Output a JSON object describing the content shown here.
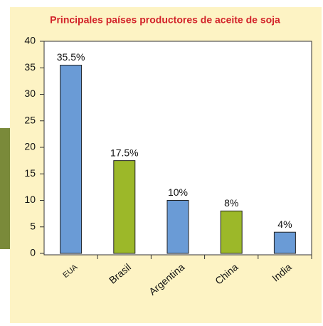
{
  "chart_data": {
    "type": "bar",
    "title": "Principales países productores de aceite de soja",
    "categories": [
      "EUA",
      "Brasil",
      "Argentina",
      "China",
      "India"
    ],
    "values": [
      35.5,
      17.5,
      10,
      8,
      4
    ],
    "value_labels": [
      "35.5%",
      "17.5%",
      "10%",
      "8%",
      "4%"
    ],
    "colors": [
      "#6a9bd6",
      "#9cb829",
      "#6a9bd6",
      "#9cb829",
      "#6a9bd6"
    ],
    "ylim": [
      0,
      40
    ],
    "yticks": [
      0,
      5,
      10,
      15,
      20,
      25,
      30,
      35,
      40
    ]
  }
}
